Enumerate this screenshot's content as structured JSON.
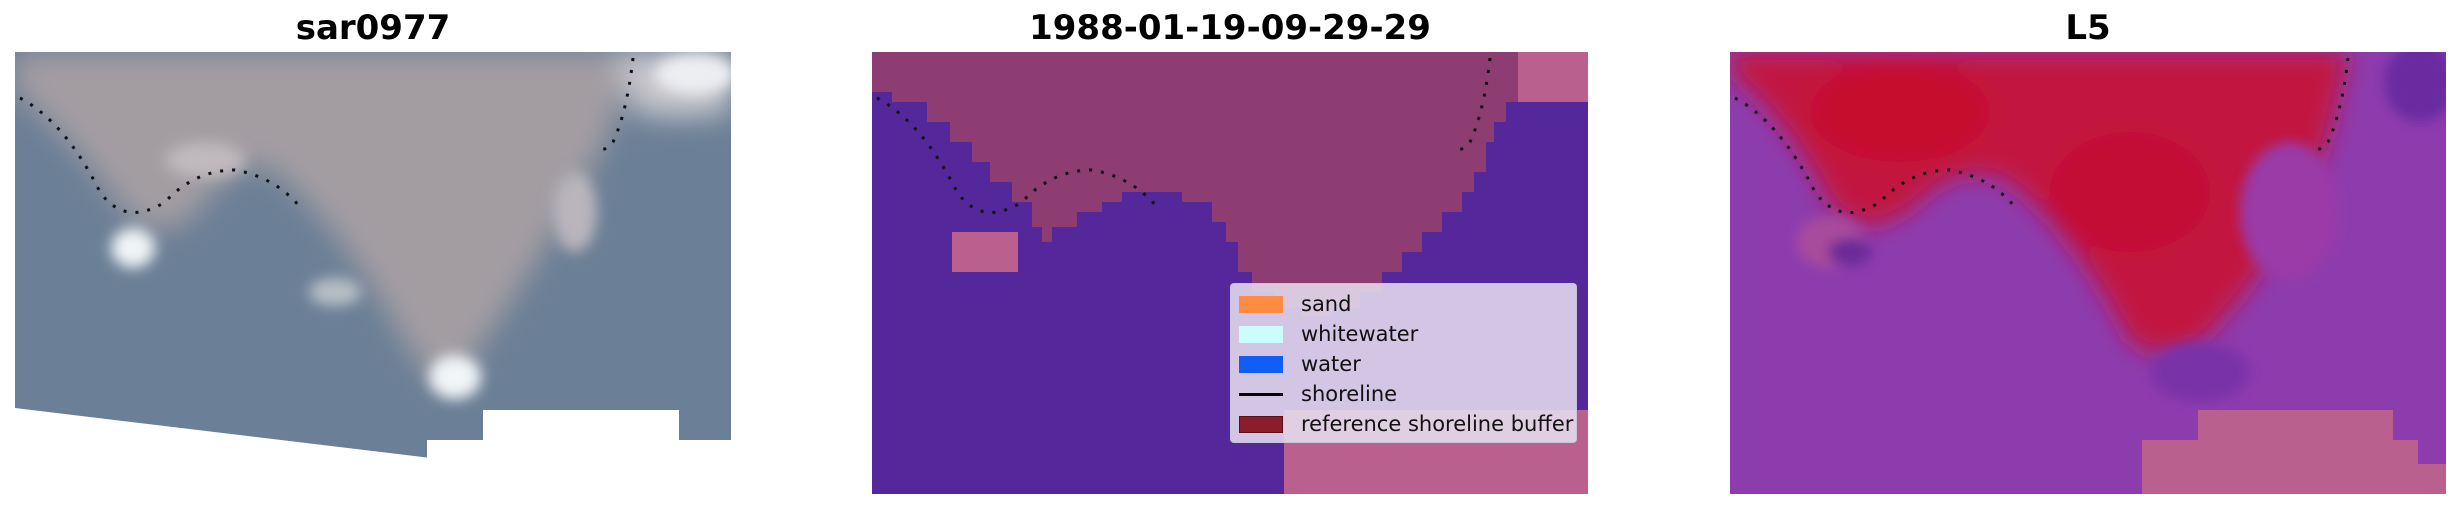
{
  "panels": [
    {
      "title": "sar0977"
    },
    {
      "title": "1988-01-19-09-29-29"
    },
    {
      "title": "L5"
    }
  ],
  "legend": {
    "items": [
      {
        "label": "sand",
        "color": "#ff8c42"
      },
      {
        "label": "whitewater",
        "color": "#ccfcfc"
      },
      {
        "label": "water",
        "color": "#0f5ef5"
      },
      {
        "label": "shoreline",
        "color": "#000000"
      },
      {
        "label": "reference shoreline buffer",
        "color": "#8b1c2c"
      }
    ]
  },
  "colors": {
    "water_rgb": "#6b7f96",
    "sand_rgb": "#a59ea3",
    "class_water": "#54279a",
    "class_sand": "#8e3d73",
    "class_mask": "#b9608f",
    "prob_high": "#c2153f",
    "prob_low": "#8d3cae",
    "mask_white": "#ffffff"
  }
}
